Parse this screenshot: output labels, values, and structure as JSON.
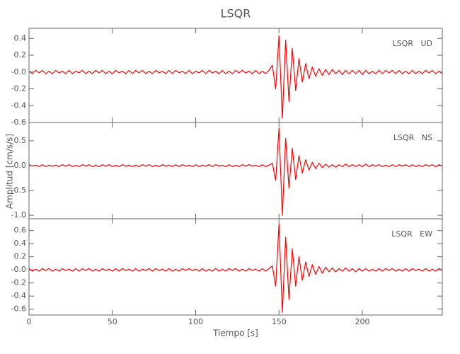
{
  "chart_data": {
    "type": "line",
    "title": "LSQR",
    "x_label": "Tiempo [s]",
    "y_label": "Amplitud [cm/s/s]",
    "x": [
      0,
      2,
      4,
      6,
      8,
      10,
      12,
      14,
      16,
      18,
      20,
      22,
      24,
      26,
      28,
      30,
      32,
      34,
      36,
      38,
      40,
      42,
      44,
      46,
      48,
      50,
      52,
      54,
      56,
      58,
      60,
      62,
      64,
      66,
      68,
      70,
      72,
      74,
      76,
      78,
      80,
      82,
      84,
      86,
      88,
      90,
      92,
      94,
      96,
      98,
      100,
      102,
      104,
      106,
      108,
      110,
      112,
      114,
      116,
      118,
      120,
      122,
      124,
      126,
      128,
      130,
      132,
      134,
      136,
      138,
      140,
      142,
      144,
      146,
      148,
      150,
      152,
      154,
      156,
      158,
      160,
      162,
      164,
      166,
      168,
      170,
      172,
      174,
      176,
      178,
      180,
      182,
      184,
      186,
      188,
      190,
      192,
      194,
      196,
      198,
      200,
      202,
      204,
      206,
      208,
      210,
      212,
      214,
      216,
      218,
      220,
      222,
      224,
      226,
      228,
      230,
      232,
      234,
      236,
      238,
      240,
      242,
      244,
      246,
      248
    ],
    "xlim": [
      0,
      248
    ],
    "xticks": [
      0,
      50,
      100,
      150,
      200
    ],
    "panels": [
      {
        "label": "LSQR   UD",
        "ylim": [
          -0.6,
          0.52
        ],
        "yticks": [
          {
            "value": -0.6,
            "label": "-0.6"
          },
          -0.4,
          -0.2,
          {
            "value": 0,
            "label": "-0.0"
          },
          0.2,
          0.4
        ],
        "series": [
          {
            "color": "#ff0000",
            "values": [
              0.01,
              -0.02,
              0.02,
              -0.01,
              0.02,
              -0.02,
              0.01,
              -0.02,
              0.02,
              -0.01,
              0.01,
              -0.02,
              0.02,
              -0.02,
              0.01,
              -0.01,
              0.02,
              -0.02,
              0.01,
              -0.02,
              0.02,
              -0.01,
              0.02,
              -0.02,
              0.01,
              -0.02,
              0.02,
              -0.01,
              0.01,
              -0.02,
              0.02,
              -0.02,
              0.02,
              -0.01,
              0.02,
              -0.02,
              0.01,
              -0.02,
              0.02,
              -0.01,
              0.01,
              -0.02,
              0.02,
              -0.02,
              0.02,
              -0.01,
              0.01,
              -0.02,
              0.02,
              -0.02,
              0.01,
              -0.01,
              0.02,
              -0.02,
              0.02,
              -0.01,
              0.01,
              -0.02,
              0.02,
              -0.02,
              0.01,
              -0.02,
              0.02,
              -0.01,
              0.02,
              -0.01,
              0.01,
              -0.02,
              0.02,
              -0.02,
              0.01,
              -0.02,
              0.02,
              0.08,
              -0.2,
              0.43,
              -0.55,
              0.38,
              -0.35,
              0.28,
              -0.22,
              0.16,
              -0.12,
              0.1,
              -0.08,
              0.06,
              -0.05,
              0.04,
              -0.04,
              0.03,
              -0.03,
              0.03,
              -0.02,
              0.02,
              -0.03,
              0.02,
              -0.02,
              0.02,
              -0.02,
              0.02,
              -0.03,
              0.02,
              -0.02,
              0.01,
              -0.02,
              0.02,
              -0.02,
              0.02,
              -0.01,
              0.02,
              -0.02,
              0.02,
              -0.02,
              0.01,
              -0.02,
              0.02,
              -0.02,
              0.01,
              -0.02,
              0.02,
              -0.01,
              0.02,
              -0.02,
              0.01,
              -0.02
            ]
          }
        ]
      },
      {
        "label": "LSQR   NS",
        "ylim": [
          -1.07,
          0.87
        ],
        "yticks": [
          {
            "value": -1,
            "label": "-1.0"
          },
          -0.5,
          {
            "value": 0,
            "label": "0.0"
          },
          0.5
        ],
        "series": [
          {
            "color": "#ff0000",
            "values": [
              0.02,
              -0.01,
              0.01,
              -0.02,
              0.02,
              -0.02,
              0.01,
              -0.01,
              0.01,
              -0.02,
              0.02,
              -0.01,
              0.02,
              -0.02,
              0.01,
              -0.02,
              0.02,
              -0.01,
              0.02,
              -0.02,
              0.01,
              -0.02,
              0.02,
              -0.01,
              0.02,
              -0.02,
              0.01,
              -0.02,
              0.02,
              -0.01,
              0.01,
              -0.02,
              0.01,
              -0.02,
              0.02,
              -0.01,
              0.02,
              -0.02,
              0.01,
              -0.02,
              0.02,
              -0.01,
              0.01,
              -0.02,
              0.02,
              -0.02,
              0.02,
              -0.01,
              0.01,
              -0.02,
              0.02,
              -0.02,
              0.01,
              -0.01,
              0.02,
              -0.02,
              0.02,
              -0.01,
              0.01,
              -0.02,
              0.02,
              -0.02,
              0.01,
              -0.02,
              0.02,
              -0.01,
              0.02,
              -0.01,
              0.01,
              -0.02,
              0.02,
              -0.02,
              0.01,
              0.05,
              -0.3,
              0.75,
              -1.0,
              0.55,
              -0.45,
              0.35,
              -0.28,
              0.2,
              -0.15,
              0.12,
              -0.09,
              0.07,
              -0.06,
              0.05,
              -0.04,
              0.03,
              -0.03,
              0.02,
              -0.03,
              0.02,
              -0.02,
              0.03,
              -0.02,
              0.02,
              -0.02,
              0.02,
              -0.02,
              0.03,
              -0.02,
              0.02,
              -0.01,
              0.02,
              -0.02,
              0.01,
              -0.02,
              0.02,
              -0.02,
              0.02,
              -0.01,
              0.02,
              -0.02,
              0.02,
              -0.02,
              0.01,
              -0.02,
              0.02,
              -0.01,
              0.02,
              -0.02,
              0.02,
              -0.01
            ]
          }
        ]
      },
      {
        "label": "LSQR   EW",
        "ylim": [
          -0.69,
          0.78
        ],
        "yticks": [
          {
            "value": -0.6,
            "label": "-0.6"
          },
          -0.4,
          -0.2,
          {
            "value": 0,
            "label": "-0.0"
          },
          0.2,
          0.4,
          0.6
        ],
        "series": [
          {
            "color": "#ff0000",
            "values": [
              0.02,
              -0.02,
              0.01,
              -0.02,
              0.02,
              -0.01,
              0.02,
              -0.02,
              0.01,
              -0.02,
              0.02,
              -0.01,
              0.01,
              -0.02,
              0.02,
              -0.02,
              0.02,
              -0.01,
              0.02,
              -0.02,
              0.01,
              -0.02,
              0.02,
              -0.01,
              0.01,
              -0.02,
              0.02,
              -0.02,
              0.02,
              -0.01,
              0.01,
              -0.02,
              0.02,
              -0.02,
              0.01,
              -0.01,
              0.02,
              -0.02,
              0.02,
              -0.01,
              0.01,
              -0.02,
              0.02,
              -0.02,
              0.01,
              -0.02,
              0.02,
              -0.01,
              0.02,
              -0.01,
              0.01,
              -0.02,
              0.02,
              -0.02,
              0.01,
              -0.02,
              0.02,
              -0.02,
              0.01,
              -0.02,
              0.02,
              -0.01,
              0.02,
              -0.02,
              0.01,
              -0.02,
              0.02,
              -0.01,
              0.01,
              -0.02,
              0.02,
              -0.02,
              0.02,
              0.06,
              -0.25,
              0.7,
              -0.65,
              0.5,
              -0.45,
              0.32,
              -0.25,
              0.2,
              -0.16,
              0.12,
              -0.1,
              0.08,
              -0.07,
              0.05,
              -0.05,
              0.04,
              -0.03,
              0.03,
              -0.03,
              0.02,
              -0.02,
              0.03,
              -0.02,
              0.02,
              -0.03,
              0.02,
              -0.02,
              0.02,
              -0.02,
              0.01,
              -0.02,
              0.02,
              -0.02,
              0.02,
              -0.01,
              0.02,
              -0.02,
              0.01,
              -0.02,
              0.02,
              -0.02,
              0.02,
              -0.01,
              0.01,
              -0.02,
              0.02,
              -0.02,
              0.01,
              -0.02,
              0.02,
              -0.01
            ]
          }
        ]
      }
    ]
  }
}
